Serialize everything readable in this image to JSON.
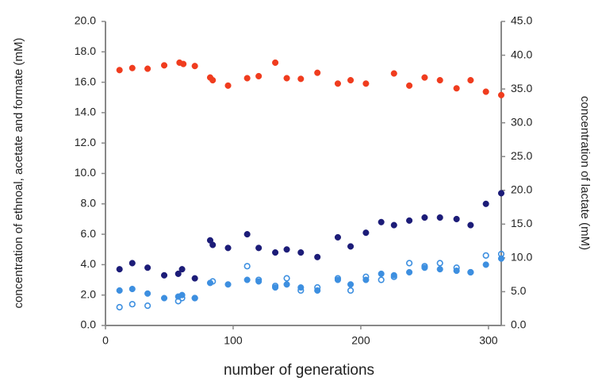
{
  "chart_data": {
    "type": "scatter",
    "x_label": "number of generations",
    "y_label": "concentration of ethnoal, acetate and formate (mM)",
    "y2_label": "concentration of lactate (mM)",
    "xlim": [
      0,
      310
    ],
    "xticks": [
      0,
      100,
      200,
      300
    ],
    "ylim": [
      0,
      20
    ],
    "yticks": [
      {
        "value": 0,
        "label": "0.0"
      },
      {
        "value": 2,
        "label": "2.0"
      },
      {
        "value": 4,
        "label": "4.0"
      },
      {
        "value": 6,
        "label": "6.0"
      },
      {
        "value": 8,
        "label": "8.0"
      },
      {
        "value": 10,
        "label": "10.0"
      },
      {
        "value": 12,
        "label": "12.0"
      },
      {
        "value": 14,
        "label": "14.0"
      },
      {
        "value": 16,
        "label": "16.0"
      },
      {
        "value": 18,
        "label": "18.0"
      },
      {
        "value": 20,
        "label": "20.0"
      }
    ],
    "y2lim": [
      0,
      45
    ],
    "y2ticks": [
      {
        "value": 0,
        "label": "0.0"
      },
      {
        "value": 5,
        "label": "5.0"
      },
      {
        "value": 10,
        "label": "10.0"
      },
      {
        "value": 15,
        "label": "15.0"
      },
      {
        "value": 20,
        "label": "20.0"
      },
      {
        "value": 25,
        "label": "25.0"
      },
      {
        "value": 30,
        "label": "30.0"
      },
      {
        "value": 35,
        "label": "35.0"
      },
      {
        "value": 40,
        "label": "40.0"
      },
      {
        "value": 45,
        "label": "45.0"
      }
    ],
    "grid": false,
    "series": [
      {
        "color": "#f03c1e",
        "axis": "y2",
        "marker": "filled",
        "x": [
          11,
          21,
          33,
          46,
          58,
          61,
          70,
          82,
          84,
          96,
          111,
          120,
          133,
          142,
          153,
          166,
          182,
          192,
          204,
          226,
          238,
          250,
          262,
          275,
          286,
          298,
          310
        ],
        "values": [
          37.8,
          38.1,
          38.0,
          38.5,
          38.9,
          38.7,
          38.4,
          36.7,
          36.3,
          35.5,
          36.6,
          36.9,
          38.9,
          36.6,
          36.5,
          37.4,
          35.8,
          36.3,
          35.8,
          37.3,
          35.5,
          36.7,
          36.3,
          35.1,
          36.3,
          34.6,
          34.1
        ]
      },
      {
        "color": "#1c1c78",
        "marker": "filled",
        "x": [
          11,
          21,
          33,
          46,
          57,
          60,
          70,
          82,
          84,
          96,
          111,
          120,
          133,
          142,
          153,
          166,
          182,
          192,
          204,
          216,
          226,
          238,
          250,
          262,
          275,
          286,
          298,
          310
        ],
        "values": [
          3.7,
          4.1,
          3.8,
          3.3,
          3.4,
          3.7,
          3.1,
          5.6,
          5.3,
          5.1,
          6.0,
          5.1,
          4.8,
          5.0,
          4.8,
          4.5,
          5.8,
          5.2,
          6.1,
          6.8,
          6.6,
          6.9,
          7.1,
          7.1,
          7.0,
          6.6,
          8.0,
          8.7
        ]
      },
      {
        "color": "#3d8fe0",
        "marker": "filled",
        "x": [
          11,
          21,
          33,
          46,
          57,
          60,
          70,
          82,
          96,
          111,
          120,
          133,
          142,
          153,
          166,
          182,
          192,
          204,
          216,
          226,
          238,
          250,
          262,
          275,
          286,
          298,
          310
        ],
        "values": [
          2.3,
          2.4,
          2.1,
          1.8,
          1.9,
          2.0,
          1.8,
          2.8,
          2.7,
          3.0,
          2.9,
          2.5,
          2.7,
          2.5,
          2.3,
          3.0,
          2.7,
          3.0,
          3.4,
          3.3,
          3.5,
          3.8,
          3.7,
          3.6,
          3.5,
          4.0,
          4.4
        ]
      },
      {
        "color": "#3d8fe0",
        "marker": "open",
        "x": [
          11,
          21,
          33,
          57,
          60,
          70,
          84,
          111,
          120,
          133,
          142,
          153,
          166,
          182,
          192,
          204,
          216,
          226,
          238,
          250,
          262,
          275,
          286,
          298,
          310
        ],
        "values": [
          1.2,
          1.4,
          1.3,
          1.6,
          1.8,
          1.8,
          2.9,
          3.9,
          3.0,
          2.6,
          3.1,
          2.3,
          2.5,
          3.1,
          2.3,
          3.2,
          3.0,
          3.2,
          4.1,
          3.9,
          4.1,
          3.8,
          3.5,
          4.6,
          4.7
        ]
      }
    ]
  }
}
